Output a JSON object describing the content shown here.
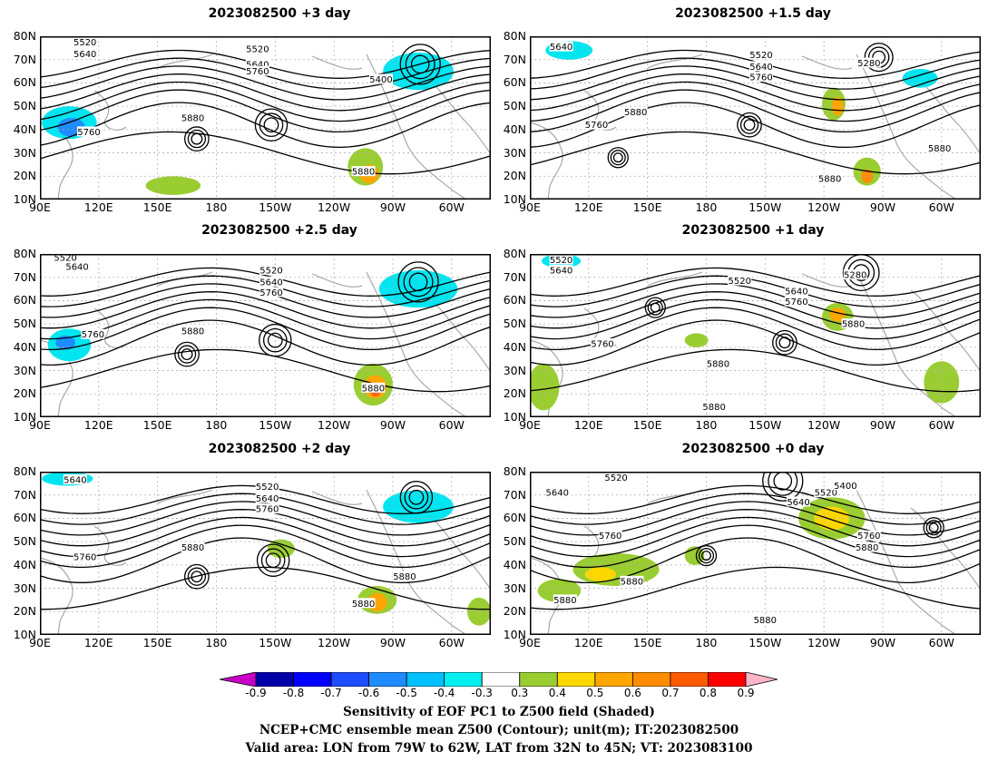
{
  "panels": [
    {
      "title": "2023082500  +3 day",
      "labels": [
        {
          "t": "5520",
          "lon": 113,
          "lat": 77.5
        },
        {
          "t": "5640",
          "lon": 113,
          "lat": 72.5
        },
        {
          "t": "5520",
          "lon": 201,
          "lat": 74.5
        },
        {
          "t": "5640",
          "lon": 201,
          "lat": 68
        },
        {
          "t": "5760",
          "lon": 201,
          "lat": 65
        },
        {
          "t": "5400",
          "lon": 264,
          "lat": 61.5
        },
        {
          "t": "5760",
          "lon": 115,
          "lat": 39
        },
        {
          "t": "5880",
          "lon": 168,
          "lat": 45
        },
        {
          "t": "5880",
          "lon": 255,
          "lat": 22
        }
      ]
    },
    {
      "title": "2023082500  +1.5 day",
      "labels": [
        {
          "t": "5640",
          "lon": 106,
          "lat": 75.5
        },
        {
          "t": "5520",
          "lon": 208,
          "lat": 72
        },
        {
          "t": "5640",
          "lon": 208,
          "lat": 67
        },
        {
          "t": "5760",
          "lon": 208,
          "lat": 62.5
        },
        {
          "t": "5280",
          "lon": 263,
          "lat": 68.5
        },
        {
          "t": "5760",
          "lon": 124,
          "lat": 42
        },
        {
          "t": "5880",
          "lon": 144,
          "lat": 47.5
        },
        {
          "t": "5880",
          "lon": 299,
          "lat": 32
        },
        {
          "t": "5880",
          "lon": 243,
          "lat": 19
        }
      ]
    },
    {
      "title": "2023082500  +2.5 day",
      "labels": [
        {
          "t": "5520",
          "lon": 103,
          "lat": 78.5
        },
        {
          "t": "5640",
          "lon": 109,
          "lat": 74.5
        },
        {
          "t": "5520",
          "lon": 208,
          "lat": 73
        },
        {
          "t": "5640",
          "lon": 208,
          "lat": 68
        },
        {
          "t": "5760",
          "lon": 208,
          "lat": 63.5
        },
        {
          "t": "5760",
          "lon": 117,
          "lat": 45.5
        },
        {
          "t": "5880",
          "lon": 168,
          "lat": 47
        },
        {
          "t": "5880",
          "lon": 260,
          "lat": 22.5
        }
      ]
    },
    {
      "title": "2023082500  +1 day",
      "labels": [
        {
          "t": "5520",
          "lon": 106,
          "lat": 77.5
        },
        {
          "t": "5640",
          "lon": 106,
          "lat": 73
        },
        {
          "t": "5520",
          "lon": 197,
          "lat": 68.5
        },
        {
          "t": "5640",
          "lon": 226,
          "lat": 64
        },
        {
          "t": "5760",
          "lon": 226,
          "lat": 59.5
        },
        {
          "t": "5280",
          "lon": 256,
          "lat": 71
        },
        {
          "t": "5880",
          "lon": 255,
          "lat": 50
        },
        {
          "t": "5760",
          "lon": 127,
          "lat": 41.5
        },
        {
          "t": "5880",
          "lon": 186,
          "lat": 33
        },
        {
          "t": "5880",
          "lon": 184,
          "lat": 14.5
        }
      ]
    },
    {
      "title": "2023082500  +2 day",
      "labels": [
        {
          "t": "5640",
          "lon": 108,
          "lat": 76.5
        },
        {
          "t": "5520",
          "lon": 206,
          "lat": 73.5
        },
        {
          "t": "5640",
          "lon": 206,
          "lat": 68.5
        },
        {
          "t": "5760",
          "lon": 206,
          "lat": 64
        },
        {
          "t": "5760",
          "lon": 113,
          "lat": 43.5
        },
        {
          "t": "5880",
          "lon": 168,
          "lat": 47.5
        },
        {
          "t": "5880",
          "lon": 276,
          "lat": 35
        },
        {
          "t": "5880",
          "lon": 255,
          "lat": 23.5
        }
      ]
    },
    {
      "title": "2023082500  +0 day",
      "labels": [
        {
          "t": "5520",
          "lon": 134,
          "lat": 77.5
        },
        {
          "t": "5640",
          "lon": 104,
          "lat": 71
        },
        {
          "t": "5520",
          "lon": 241,
          "lat": 71
        },
        {
          "t": "5400",
          "lon": 251,
          "lat": 74
        },
        {
          "t": "5640",
          "lon": 227,
          "lat": 67
        },
        {
          "t": "5760",
          "lon": 131,
          "lat": 52.5
        },
        {
          "t": "5760",
          "lon": 263,
          "lat": 52.5
        },
        {
          "t": "5880",
          "lon": 262,
          "lat": 47.5
        },
        {
          "t": "5880",
          "lon": 142,
          "lat": 33
        },
        {
          "t": "5880",
          "lon": 108,
          "lat": 25
        },
        {
          "t": "5880",
          "lon": 210,
          "lat": 16.5
        }
      ]
    }
  ],
  "axes": {
    "lat_labels": [
      "80N",
      "70N",
      "60N",
      "50N",
      "40N",
      "30N",
      "20N",
      "10N"
    ],
    "lon_labels": [
      "90E",
      "120E",
      "150E",
      "180",
      "150W",
      "120W",
      "90W",
      "60W"
    ],
    "lon_min": 90,
    "lon_max": 320,
    "lat_min": 10,
    "lat_max": 80
  },
  "colorbar": {
    "ticks": [
      "-0.9",
      "-0.8",
      "-0.7",
      "-0.6",
      "-0.5",
      "-0.4",
      "-0.3",
      "0.3",
      "0.4",
      "0.5",
      "0.6",
      "0.7",
      "0.8",
      "0.9"
    ],
    "colors": [
      "#c800c8",
      "#0000a8",
      "#0000ff",
      "#1e4cff",
      "#1e8cff",
      "#00c0ff",
      "#00f0f0",
      "#ffffff",
      "#9acd32",
      "#ffd700",
      "#ffa500",
      "#ff8c00",
      "#ff5a00",
      "#ff0000",
      "#ffb4c8"
    ]
  },
  "caption": {
    "line1": "Sensitivity of EOF PC1 to Z500 field (Shaded)",
    "line2": "NCEP+CMC ensemble mean Z500 (Contour); unit(m); IT:2023082500",
    "line3": "Valid area: LON from 79W to 62W, LAT from 32N to 45N; VT: 2023083100"
  }
}
